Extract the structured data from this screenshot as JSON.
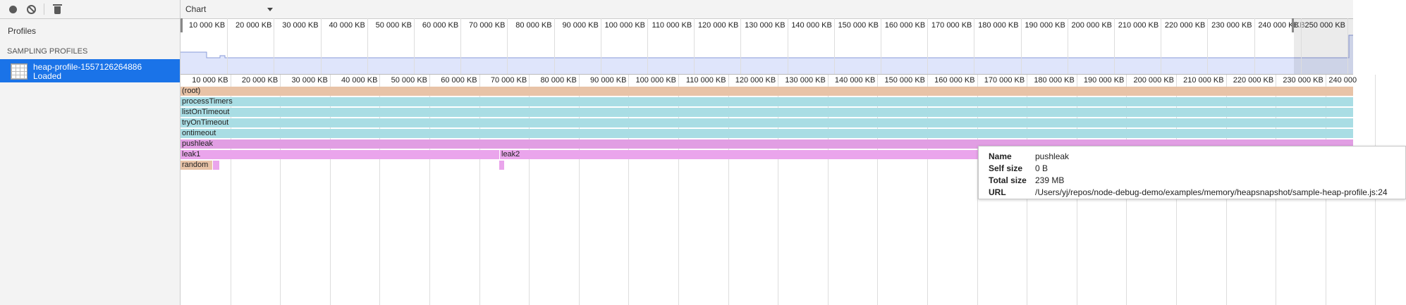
{
  "toolbar": {
    "record_icon": "record-icon",
    "clear_icon": "clear-icon",
    "delete_icon": "trash-icon"
  },
  "sidebar": {
    "profiles_title": "Profiles",
    "section_title": "SAMPLING PROFILES",
    "item": {
      "name": "heap-profile-1557126264886",
      "status": "Loaded"
    }
  },
  "view": {
    "selected": "Chart"
  },
  "overview": {
    "tick_labels": [
      "10 000 KB",
      "20 000 KB",
      "30 000 KB",
      "40 000 KB",
      "50 000 KB",
      "60 000 KB",
      "70 000 KB",
      "80 000 KB",
      "90 000 KB",
      "100 000 KB",
      "110 000 KB",
      "120 000 KB",
      "130 000 KB",
      "140 000 KB",
      "150 000 KB",
      "160 000 KB",
      "170 000 KB",
      "180 000 KB",
      "190 000 KB",
      "200 000 KB",
      "210 000 KB",
      "220 000 KB",
      "230 000 KB",
      "240 000 KB",
      "250 000 KB"
    ],
    "partial_label": "KB"
  },
  "flame": {
    "tick_labels": [
      "10 000 KB",
      "20 000 KB",
      "30 000 KB",
      "40 000 KB",
      "50 000 KB",
      "60 000 KB",
      "70 000 KB",
      "80 000 KB",
      "90 000 KB",
      "100 000 KB",
      "110 000 KB",
      "120 000 KB",
      "130 000 KB",
      "140 000 KB",
      "150 000 KB",
      "160 000 KB",
      "170 000 KB",
      "180 000 KB",
      "190 000 KB",
      "200 000 KB",
      "210 000 KB",
      "220 000 KB",
      "230 000 KB",
      "240 000"
    ],
    "colors": {
      "root": "#e8c3a7",
      "timers": "#a9dde4",
      "pushleak": "#e19ee3",
      "leak": "#eaa5ec",
      "random": "#e8c3a7"
    },
    "bars": [
      {
        "label": "(root)",
        "color_key": "root"
      },
      {
        "label": "processTimers",
        "color_key": "timers"
      },
      {
        "label": "listOnTimeout",
        "color_key": "timers"
      },
      {
        "label": "tryOnTimeout",
        "color_key": "timers"
      },
      {
        "label": "ontimeout",
        "color_key": "timers"
      },
      {
        "label": "pushleak",
        "color_key": "pushleak"
      },
      {
        "label": "leak1",
        "color_key": "leak"
      },
      {
        "label": "leak2",
        "color_key": "leak"
      },
      {
        "label": "random",
        "color_key": "random"
      }
    ]
  },
  "tooltip": {
    "name_key": "Name",
    "name_value": "pushleak",
    "self_key": "Self size",
    "self_value": "0 B",
    "total_key": "Total size",
    "total_value": "239 MB",
    "url_key": "URL",
    "url_value": "/Users/yj/repos/node-debug-demo/examples/memory/heapsnapshot/sample-heap-profile.js:24"
  }
}
